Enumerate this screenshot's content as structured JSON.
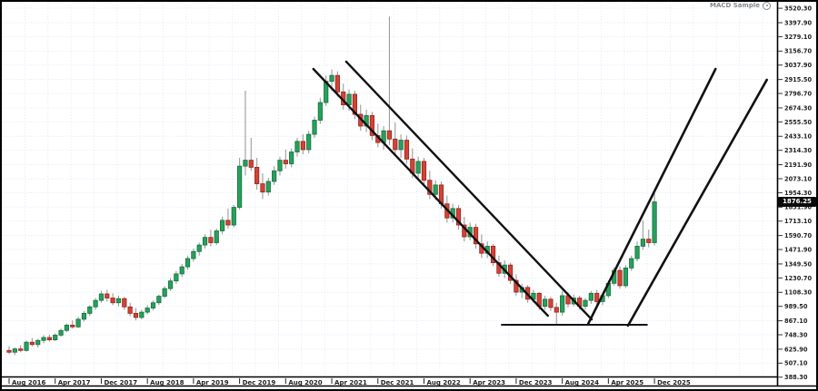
{
  "indicator": {
    "label": "MACD Sample",
    "icon": "circle-dot-icon"
  },
  "colors": {
    "up_candle": "#27a05d",
    "up_border": "#14713c",
    "down_candle": "#d14338",
    "down_border": "#9c2318",
    "wick": "#9b9b9b",
    "grid": "#dde5f4",
    "trendline": "#111111",
    "axis_text": "#222222",
    "frame": "#000000",
    "price_tag_bg": "#0a0a0a",
    "price_tag_text": "#ffffff"
  },
  "price_axis": {
    "current_price": "1876.25",
    "labels": [
      "3520.30",
      "3397.90",
      "3279.10",
      "3156.70",
      "3037.90",
      "2915.50",
      "2796.70",
      "2674.30",
      "2555.50",
      "2433.10",
      "2314.30",
      "2191.90",
      "2073.10",
      "1954.30",
      "1831.90",
      "1713.10",
      "1590.70",
      "1471.90",
      "1349.50",
      "1230.70",
      "1108.30",
      "989.50",
      "867.10",
      "748.30",
      "625.90",
      "507.10",
      "388.30"
    ]
  },
  "time_axis": {
    "labels": [
      {
        "i": 0,
        "label": "Aug 2016"
      },
      {
        "i": 8,
        "label": "Apr 2017"
      },
      {
        "i": 16,
        "label": "Dec 2017"
      },
      {
        "i": 24,
        "label": "Aug 2018"
      },
      {
        "i": 32,
        "label": "Apr 2019"
      },
      {
        "i": 40,
        "label": "Dec 2019"
      },
      {
        "i": 48,
        "label": "Aug 2020"
      },
      {
        "i": 56,
        "label": "Apr 2021"
      },
      {
        "i": 64,
        "label": "Dec 2021"
      },
      {
        "i": 72,
        "label": "Aug 2022"
      },
      {
        "i": 80,
        "label": "Apr 2023"
      },
      {
        "i": 88,
        "label": "Dec 2023"
      },
      {
        "i": 96,
        "label": "Aug 2024"
      },
      {
        "i": 104,
        "label": "Apr 2025"
      },
      {
        "i": 112,
        "label": "Dec 2025"
      }
    ]
  },
  "chart_data": {
    "type": "candlestick",
    "title": "",
    "timeframe": "monthly",
    "first_candle": "2016-08",
    "last_close": 1876.25,
    "ylim": [
      340,
      3575
    ],
    "grid": true,
    "legend": false,
    "ohlc": [
      [
        615,
        650,
        585,
        600
      ],
      [
        600,
        640,
        575,
        628
      ],
      [
        628,
        660,
        600,
        615
      ],
      [
        615,
        700,
        605,
        685
      ],
      [
        685,
        720,
        650,
        665
      ],
      [
        665,
        715,
        640,
        700
      ],
      [
        700,
        745,
        675,
        725
      ],
      [
        725,
        750,
        690,
        705
      ],
      [
        705,
        760,
        695,
        745
      ],
      [
        745,
        800,
        730,
        785
      ],
      [
        785,
        845,
        770,
        830
      ],
      [
        830,
        870,
        800,
        815
      ],
      [
        815,
        900,
        805,
        880
      ],
      [
        880,
        950,
        860,
        930
      ],
      [
        930,
        1000,
        910,
        985
      ],
      [
        985,
        1060,
        960,
        1040
      ],
      [
        1040,
        1120,
        1020,
        1095
      ],
      [
        1095,
        1130,
        1030,
        1060
      ],
      [
        1060,
        1100,
        1000,
        1020
      ],
      [
        1020,
        1080,
        990,
        1055
      ],
      [
        1055,
        1070,
        960,
        985
      ],
      [
        985,
        1020,
        905,
        930
      ],
      [
        930,
        975,
        870,
        895
      ],
      [
        895,
        960,
        880,
        940
      ],
      [
        940,
        1000,
        920,
        975
      ],
      [
        975,
        1040,
        955,
        1020
      ],
      [
        1020,
        1090,
        1000,
        1075
      ],
      [
        1075,
        1160,
        1060,
        1140
      ],
      [
        1140,
        1230,
        1120,
        1205
      ],
      [
        1205,
        1290,
        1180,
        1265
      ],
      [
        1265,
        1350,
        1240,
        1325
      ],
      [
        1325,
        1420,
        1300,
        1395
      ],
      [
        1395,
        1480,
        1370,
        1455
      ],
      [
        1455,
        1530,
        1420,
        1510
      ],
      [
        1510,
        1600,
        1480,
        1575
      ],
      [
        1575,
        1640,
        1500,
        1530
      ],
      [
        1530,
        1650,
        1510,
        1630
      ],
      [
        1630,
        1750,
        1600,
        1720
      ],
      [
        1720,
        1820,
        1650,
        1680
      ],
      [
        1680,
        1850,
        1660,
        1830
      ],
      [
        1830,
        2250,
        1810,
        2180
      ],
      [
        2180,
        2820,
        2100,
        2230
      ],
      [
        2230,
        2420,
        2140,
        2170
      ],
      [
        2170,
        2250,
        1980,
        2030
      ],
      [
        2030,
        2120,
        1900,
        1960
      ],
      [
        1960,
        2080,
        1930,
        2050
      ],
      [
        2050,
        2180,
        2020,
        2140
      ],
      [
        2140,
        2260,
        2100,
        2230
      ],
      [
        2230,
        2320,
        2160,
        2200
      ],
      [
        2200,
        2330,
        2170,
        2300
      ],
      [
        2300,
        2420,
        2260,
        2390
      ],
      [
        2390,
        2450,
        2280,
        2320
      ],
      [
        2320,
        2480,
        2290,
        2450
      ],
      [
        2450,
        2600,
        2420,
        2570
      ],
      [
        2570,
        2760,
        2540,
        2720
      ],
      [
        2720,
        2950,
        2690,
        2900
      ],
      [
        2900,
        3000,
        2820,
        2950
      ],
      [
        2950,
        2985,
        2770,
        2810
      ],
      [
        2810,
        2880,
        2660,
        2700
      ],
      [
        2700,
        2830,
        2650,
        2790
      ],
      [
        2790,
        2820,
        2580,
        2620
      ],
      [
        2620,
        2700,
        2480,
        2520
      ],
      [
        2520,
        2660,
        2470,
        2610
      ],
      [
        2610,
        2640,
        2400,
        2440
      ],
      [
        2440,
        2540,
        2340,
        2380
      ],
      [
        2380,
        2520,
        2320,
        2480
      ],
      [
        2480,
        3450,
        2360,
        2410
      ],
      [
        2410,
        2550,
        2280,
        2320
      ],
      [
        2320,
        2450,
        2250,
        2400
      ],
      [
        2400,
        2440,
        2200,
        2240
      ],
      [
        2240,
        2330,
        2080,
        2120
      ],
      [
        2120,
        2260,
        2060,
        2220
      ],
      [
        2220,
        2250,
        2020,
        2060
      ],
      [
        2060,
        2140,
        1900,
        1940
      ],
      [
        1940,
        2060,
        1890,
        2020
      ],
      [
        2020,
        2050,
        1820,
        1860
      ],
      [
        1860,
        1930,
        1700,
        1740
      ],
      [
        1740,
        1860,
        1700,
        1820
      ],
      [
        1820,
        1850,
        1640,
        1680
      ],
      [
        1680,
        1750,
        1540,
        1580
      ],
      [
        1580,
        1700,
        1550,
        1660
      ],
      [
        1660,
        1690,
        1480,
        1520
      ],
      [
        1520,
        1600,
        1400,
        1440
      ],
      [
        1440,
        1540,
        1400,
        1500
      ],
      [
        1500,
        1520,
        1330,
        1360
      ],
      [
        1360,
        1420,
        1240,
        1270
      ],
      [
        1270,
        1380,
        1230,
        1340
      ],
      [
        1340,
        1360,
        1180,
        1210
      ],
      [
        1210,
        1260,
        1080,
        1110
      ],
      [
        1110,
        1180,
        1060,
        1150
      ],
      [
        1150,
        1170,
        1020,
        1050
      ],
      [
        1050,
        1130,
        1020,
        1100
      ],
      [
        1100,
        1110,
        960,
        990
      ],
      [
        990,
        1080,
        960,
        1050
      ],
      [
        1050,
        1070,
        950,
        980
      ],
      [
        980,
        1020,
        830,
        940
      ],
      [
        940,
        1120,
        910,
        1080
      ],
      [
        1080,
        1110,
        980,
        1010
      ],
      [
        1010,
        1090,
        990,
        1060
      ],
      [
        1060,
        1080,
        960,
        990
      ],
      [
        990,
        1060,
        960,
        1040
      ],
      [
        1040,
        1120,
        1010,
        1100
      ],
      [
        1100,
        1130,
        1000,
        1030
      ],
      [
        1030,
        1100,
        1000,
        1080
      ],
      [
        1080,
        1210,
        1060,
        1185
      ],
      [
        1185,
        1320,
        1165,
        1295
      ],
      [
        1295,
        1330,
        1140,
        1165
      ],
      [
        1165,
        1340,
        1145,
        1315
      ],
      [
        1315,
        1420,
        1290,
        1395
      ],
      [
        1395,
        1540,
        1370,
        1500
      ],
      [
        1500,
        1720,
        1470,
        1560
      ],
      [
        1560,
        1640,
        1490,
        1530
      ],
      [
        1530,
        1960,
        1505,
        1876.25
      ]
    ],
    "trendlines": [
      {
        "name": "down-channel-inner",
        "i1": 52.8,
        "p1": 3005,
        "i2": 93.5,
        "p2": 910,
        "width": 2.4
      },
      {
        "name": "down-channel-outer",
        "i1": 58.5,
        "p1": 3067,
        "i2": 101.1,
        "p2": 879,
        "width": 2.4
      },
      {
        "name": "base-support",
        "i1": 85.5,
        "p1": 833,
        "i2": 110.7,
        "p2": 833,
        "width": 2.0
      },
      {
        "name": "up-channel-inner",
        "i1": 100.5,
        "p1": 841,
        "i2": 122.6,
        "p2": 3005,
        "width": 2.6
      },
      {
        "name": "up-channel-outer",
        "i1": 107.4,
        "p1": 825,
        "i2": 131.5,
        "p2": 2913,
        "width": 2.6
      }
    ]
  }
}
